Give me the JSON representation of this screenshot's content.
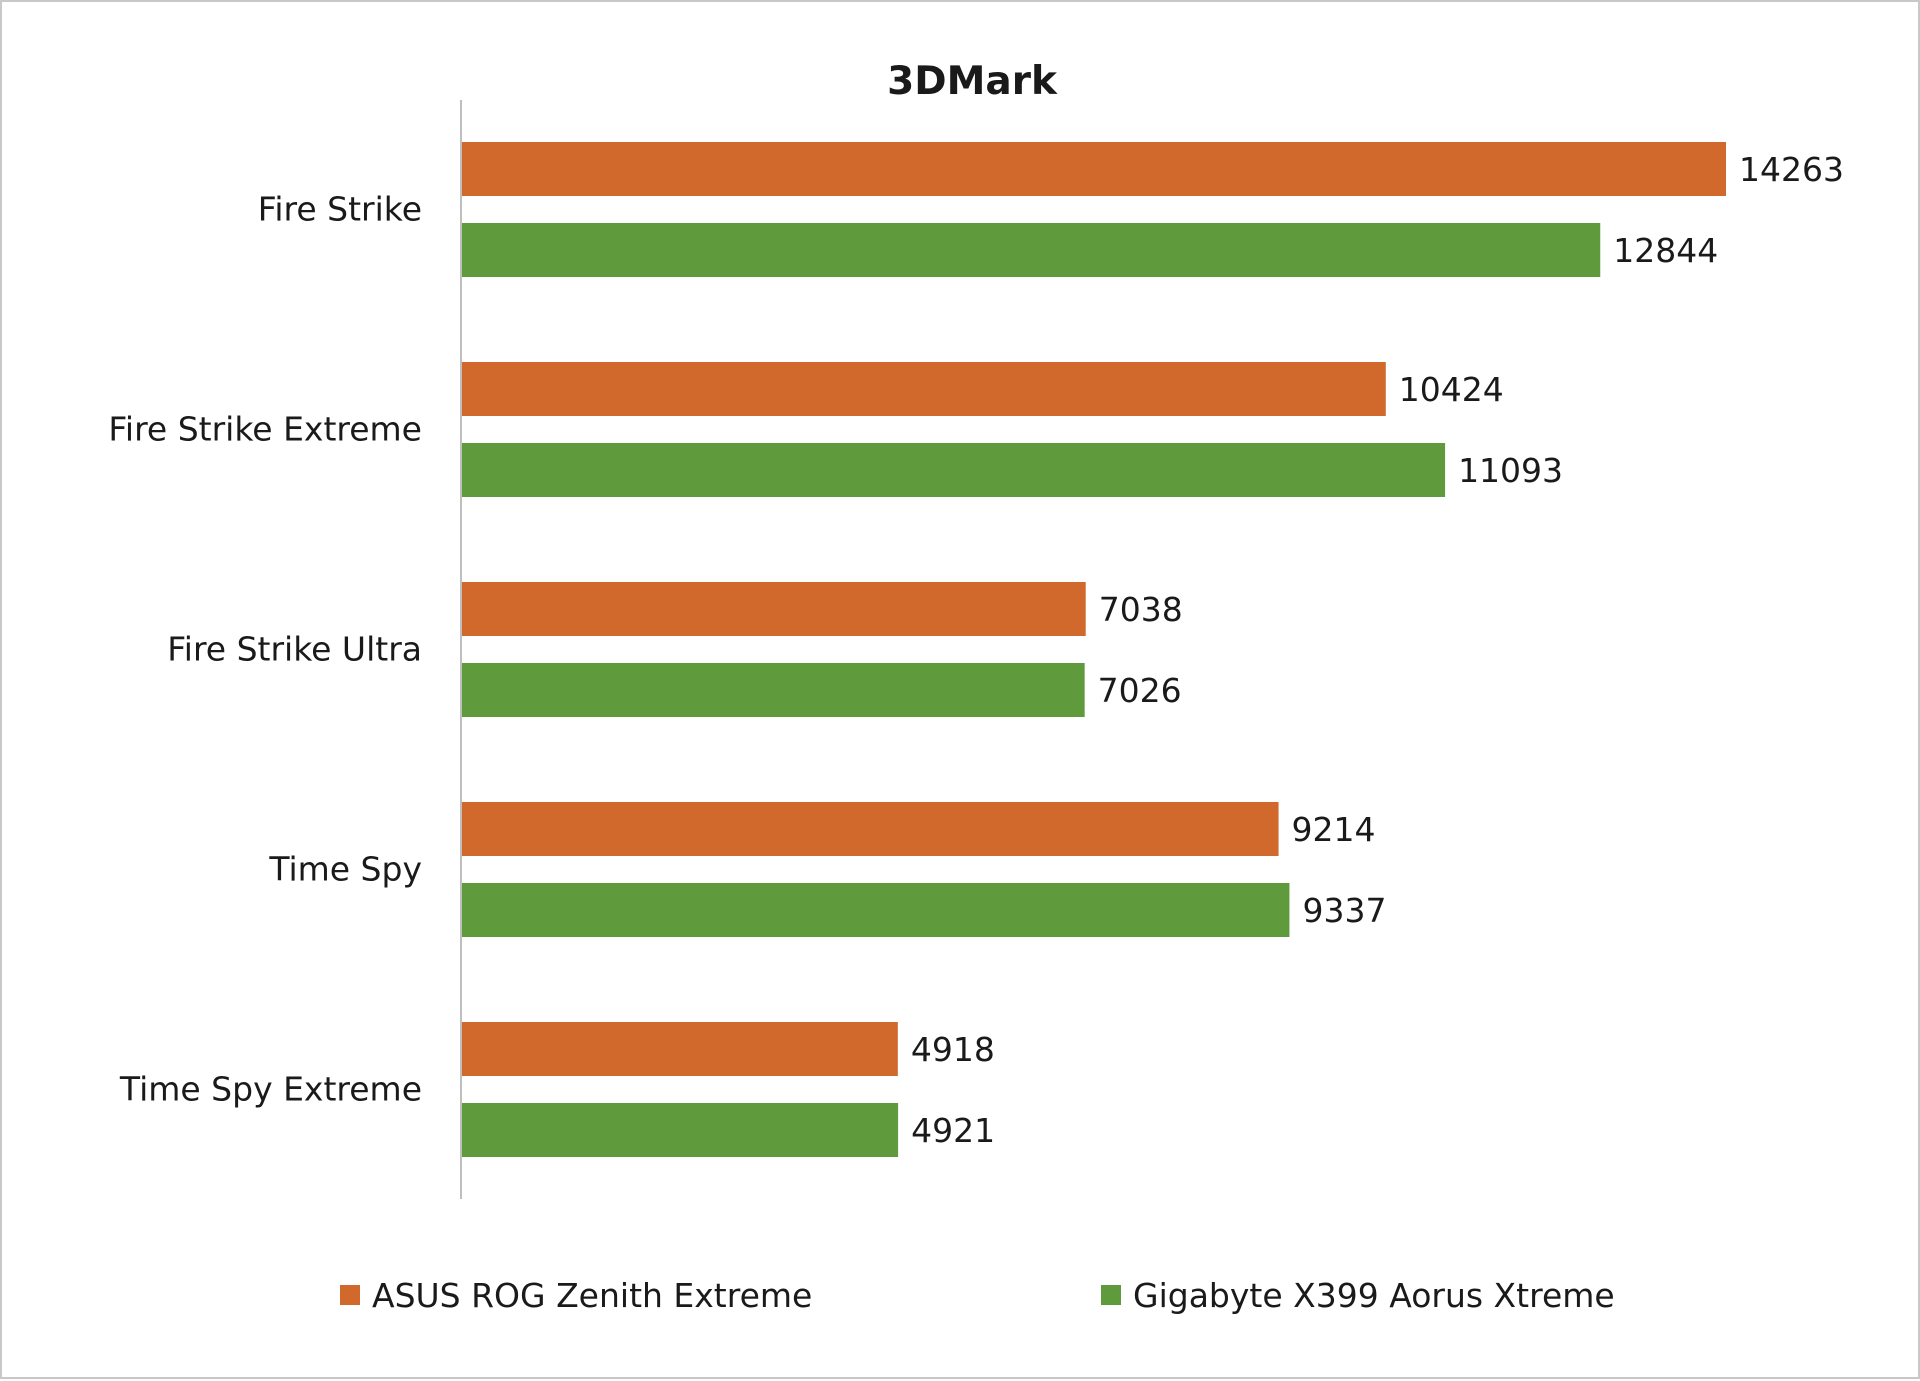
{
  "chart_data": {
    "type": "bar",
    "orientation": "horizontal",
    "title": "3DMark",
    "categories": [
      "Fire Strike",
      "Fire Strike Extreme",
      "Fire Strike Ultra",
      "Time Spy",
      "Time Spy Extreme"
    ],
    "series": [
      {
        "name": "ASUS ROG Zenith Extreme",
        "color": "#d2692c",
        "values": [
          14263,
          10424,
          7038,
          9214,
          4918
        ]
      },
      {
        "name": "Gigabyte X399 Aorus Xtreme",
        "color": "#5f9b3c",
        "values": [
          12844,
          11093,
          7026,
          9337,
          4921
        ]
      }
    ],
    "xlim": [
      0,
      16000
    ],
    "grid": false,
    "legend": "bottom",
    "data_labels": true
  }
}
